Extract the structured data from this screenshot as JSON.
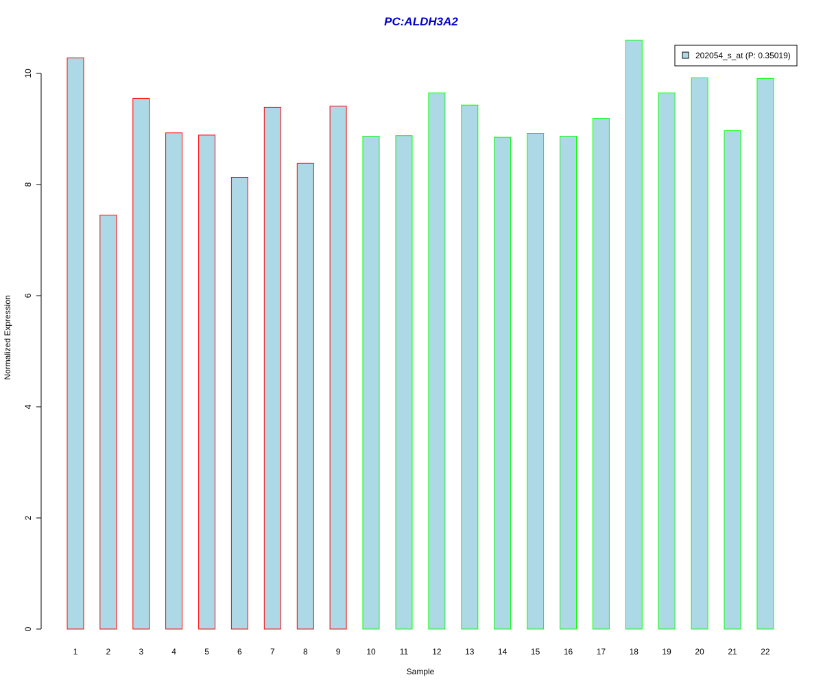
{
  "chart_data": {
    "type": "bar",
    "title": "PC:ALDH3A2",
    "xlabel": "Sample",
    "ylabel": "Normalized Expression",
    "ylim": [
      0,
      10.6
    ],
    "yticks": [
      0,
      2,
      4,
      6,
      8,
      10
    ],
    "categories": [
      "1",
      "2",
      "3",
      "4",
      "5",
      "6",
      "7",
      "8",
      "9",
      "10",
      "11",
      "12",
      "13",
      "14",
      "15",
      "16",
      "17",
      "18",
      "19",
      "20",
      "21",
      "22"
    ],
    "series": [
      {
        "name": "202054_s_at (P: 0.35019)",
        "values": [
          10.28,
          7.45,
          9.55,
          8.93,
          8.89,
          8.13,
          9.39,
          8.38,
          9.41,
          8.87,
          8.88,
          9.65,
          9.43,
          8.85,
          8.92,
          8.87,
          9.19,
          10.6,
          9.65,
          9.92,
          8.97,
          9.91
        ]
      }
    ],
    "groups": [
      "red",
      "red",
      "red",
      "red",
      "red",
      "red",
      "red",
      "red",
      "red",
      "green",
      "green",
      "green",
      "green",
      "green",
      "green",
      "green",
      "green",
      "green",
      "green",
      "green",
      "green",
      "green"
    ],
    "colors": {
      "fill": "#add8e6",
      "group_red": "#ff0000",
      "group_green": "#00ff00",
      "title": "#0000cc",
      "axis": "#000000"
    },
    "legend_position": "top-right",
    "grid": false
  }
}
